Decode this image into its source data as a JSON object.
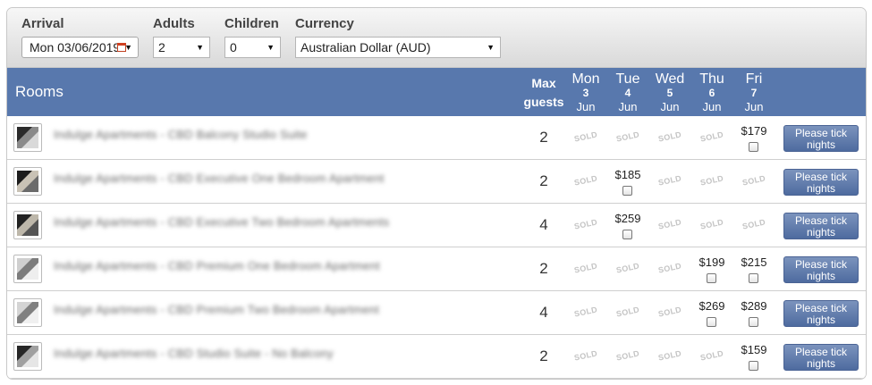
{
  "filters": {
    "arrival": {
      "label": "Arrival",
      "value": "Mon 03/06/2019"
    },
    "adults": {
      "label": "Adults",
      "value": "2"
    },
    "children": {
      "label": "Children",
      "value": "0"
    },
    "currency": {
      "label": "Currency",
      "value": "Australian Dollar (AUD)"
    }
  },
  "table": {
    "rooms_header": "Rooms",
    "max_guests_header_1": "Max",
    "max_guests_header_2": "guests",
    "days": [
      {
        "name": "Mon",
        "date": "3",
        "month": "Jun"
      },
      {
        "name": "Tue",
        "date": "4",
        "month": "Jun"
      },
      {
        "name": "Wed",
        "date": "5",
        "month": "Jun"
      },
      {
        "name": "Thu",
        "date": "6",
        "month": "Jun"
      },
      {
        "name": "Fri",
        "date": "7",
        "month": "Jun"
      }
    ],
    "sold_label": "SOLD",
    "tick_button_label": "Please tick nights",
    "rows": [
      {
        "name": "Indulge Apartments - CBD Balcony Studio Suite",
        "max_guests": "2",
        "nights": [
          null,
          null,
          null,
          null,
          "$179"
        ]
      },
      {
        "name": "Indulge Apartments - CBD Executive One Bedroom Apartment",
        "max_guests": "2",
        "nights": [
          null,
          "$185",
          null,
          null,
          null
        ]
      },
      {
        "name": "Indulge Apartments - CBD Executive Two Bedroom Apartments",
        "max_guests": "4",
        "nights": [
          null,
          "$259",
          null,
          null,
          null
        ]
      },
      {
        "name": "Indulge Apartments - CBD Premium One Bedroom Apartment",
        "max_guests": "2",
        "nights": [
          null,
          null,
          null,
          "$199",
          "$215"
        ]
      },
      {
        "name": "Indulge Apartments - CBD Premium Two Bedroom Apartment",
        "max_guests": "4",
        "nights": [
          null,
          null,
          null,
          "$269",
          "$289"
        ]
      },
      {
        "name": "Indulge Apartments - CBD Studio Suite - No Balcony",
        "max_guests": "2",
        "nights": [
          null,
          null,
          null,
          null,
          "$159"
        ]
      }
    ]
  },
  "colors": {
    "header_band": "#5878ad",
    "button": "#5c78a8",
    "sold_text": "#c4c4c4"
  },
  "icons": {
    "calendar": "calendar-icon",
    "dropdown": "dropdown-caret-icon",
    "room_thumbnail": "room-photo-thumbnail"
  }
}
